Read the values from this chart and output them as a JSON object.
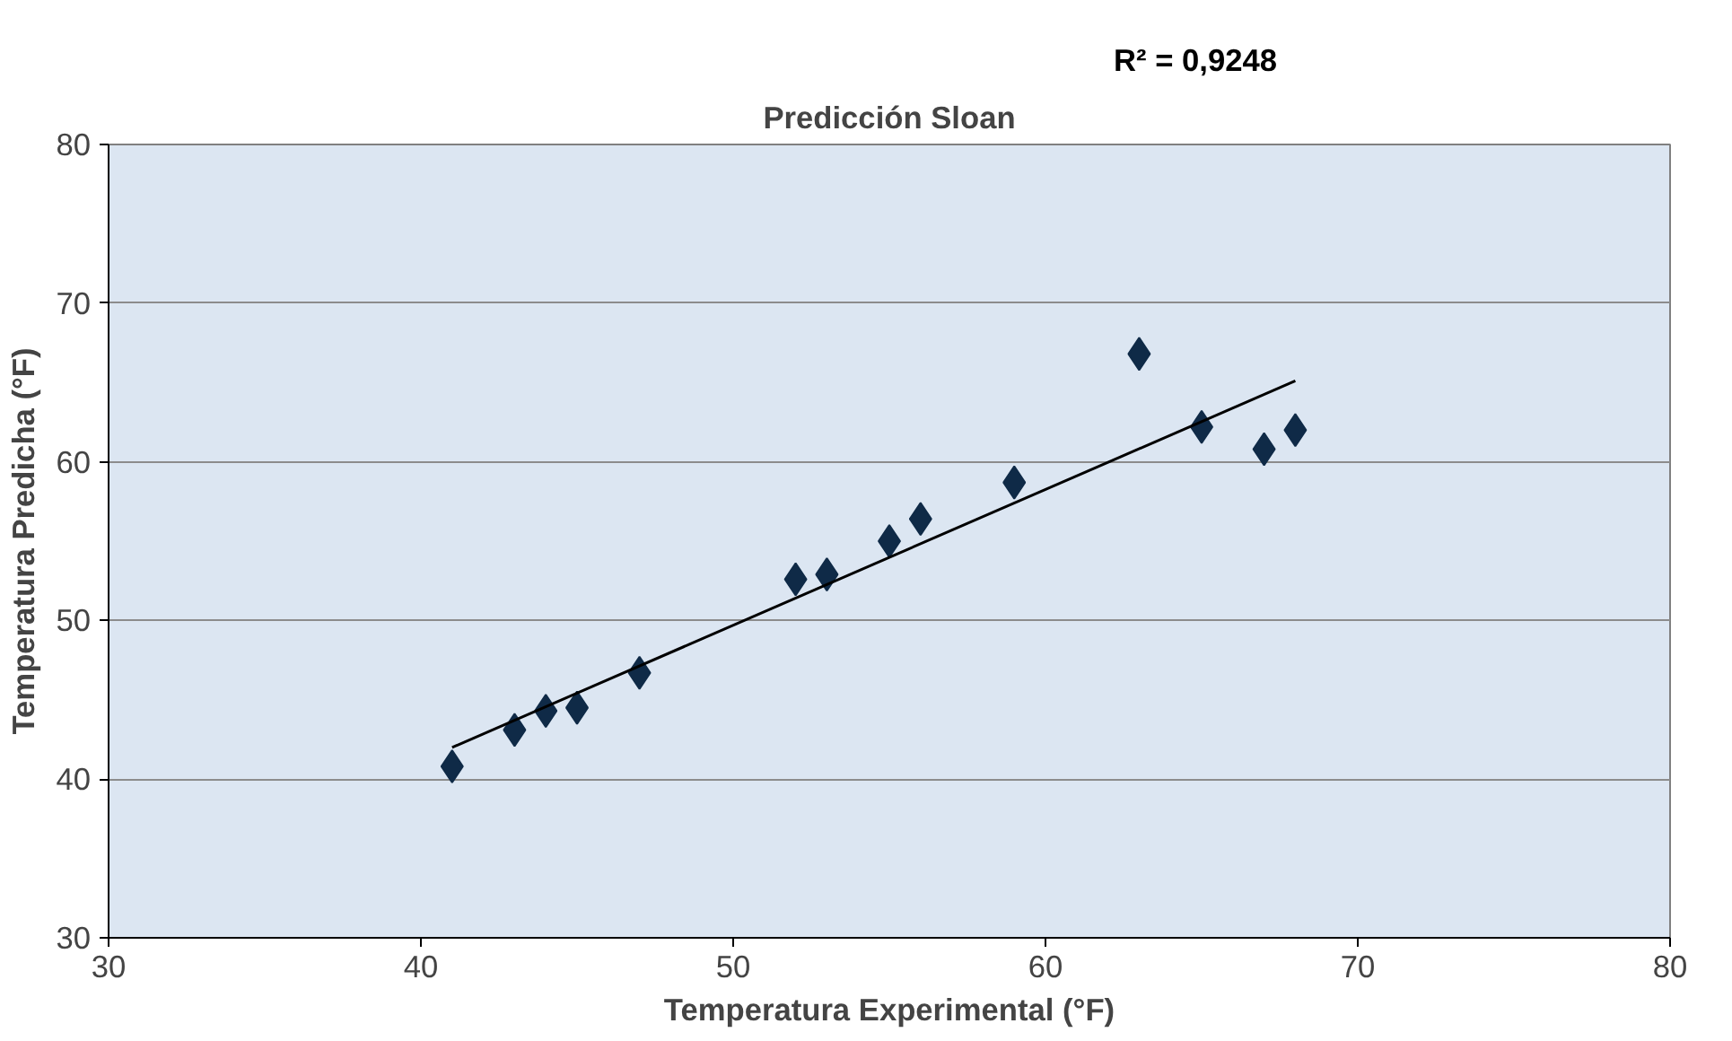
{
  "chart_data": {
    "type": "scatter",
    "title": "Predicción Sloan",
    "xlabel": "Temperatura Experimental (°F)",
    "ylabel": "Temperatura Predicha (°F)",
    "annotations": [
      "R² = 0,9248"
    ],
    "xlim": [
      30,
      80
    ],
    "xticks": [
      30,
      40,
      50,
      60,
      70,
      80
    ],
    "ylim": [
      30,
      80
    ],
    "yticks": [
      30,
      40,
      50,
      60,
      70,
      80
    ],
    "grid": "y",
    "marker": "diamond",
    "series": [
      {
        "color": "#0f2a47",
        "x": [
          41,
          43,
          44,
          45,
          47,
          52,
          53,
          55,
          56,
          59,
          63,
          65,
          67,
          68
        ],
        "values": [
          40.8,
          43.1,
          44.3,
          44.5,
          46.7,
          52.6,
          52.9,
          55.0,
          56.4,
          58.7,
          66.8,
          62.2,
          60.8,
          62.0
        ]
      },
      {
        "type": "line",
        "color": "#000000",
        "marker": "none",
        "line_style": "solid",
        "x": [
          41,
          68
        ],
        "values": [
          42.0,
          65.1
        ]
      }
    ]
  }
}
